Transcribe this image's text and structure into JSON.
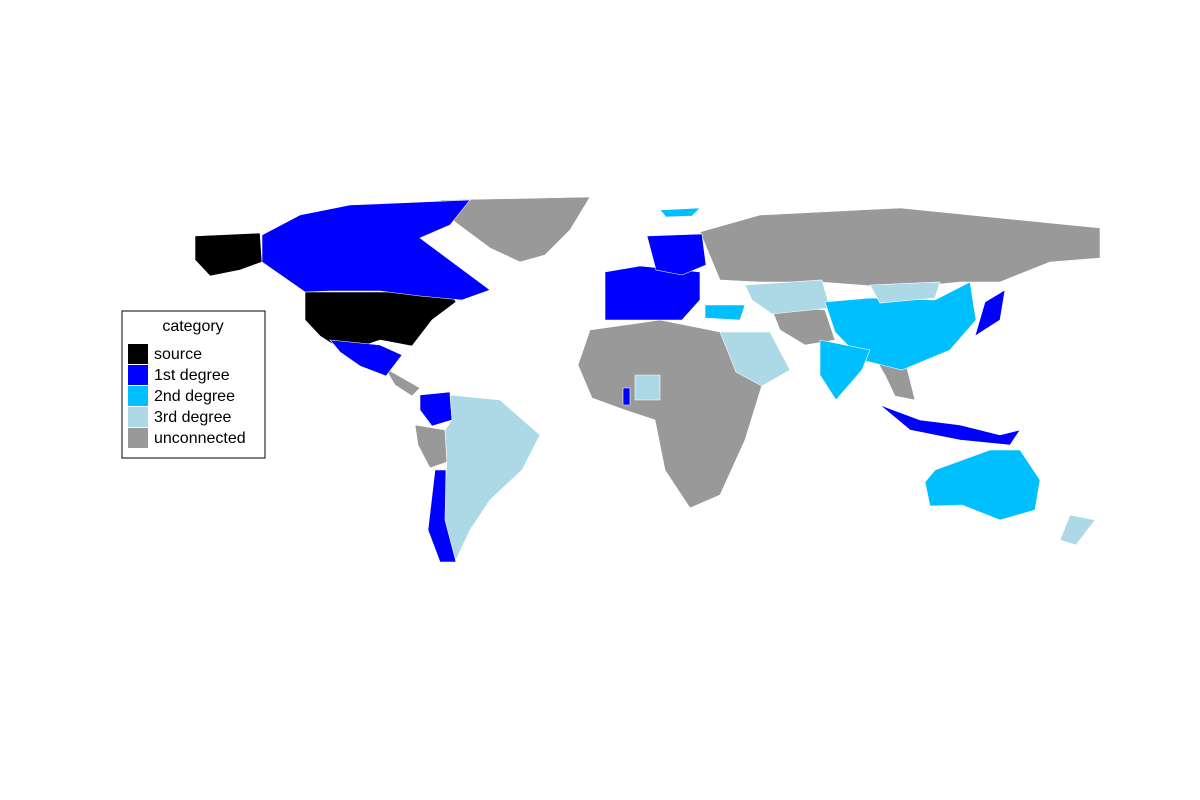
{
  "legend": {
    "title": "category",
    "items": [
      {
        "label": "source",
        "color": "#000000"
      },
      {
        "label": "1st degree",
        "color": "#0000ff"
      },
      {
        "label": "2nd degree",
        "color": "#00bfff"
      },
      {
        "label": "3rd degree",
        "color": "#add8e6"
      },
      {
        "label": "unconnected",
        "color": "#999999"
      }
    ]
  }
}
